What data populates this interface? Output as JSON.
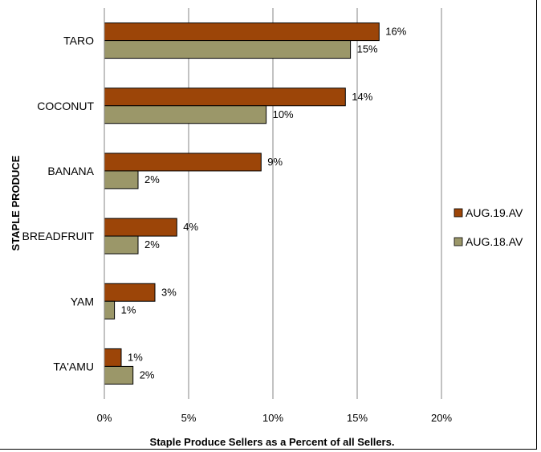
{
  "chart_data": {
    "type": "bar",
    "orientation": "horizontal",
    "title": "",
    "xlabel": "Staple Produce Sellers as a Percent of all Sellers.",
    "ylabel": "STAPLE PRODUCE",
    "categories": [
      "TARO",
      "COCONUT",
      "BANANA",
      "BREADFRUIT",
      "YAM",
      "TA'AMU"
    ],
    "series": [
      {
        "name": "AUG.19.AV",
        "color": "#9c4508",
        "values": [
          16.3,
          14.3,
          9.3,
          4.3,
          3.0,
          1.0
        ],
        "labels": [
          "16%",
          "14%",
          "9%",
          "4%",
          "3%",
          "1%"
        ]
      },
      {
        "name": "AUG.18.AV",
        "color": "#9b9769",
        "values": [
          14.6,
          9.6,
          2.0,
          2.0,
          0.6,
          1.7
        ],
        "labels": [
          "15%",
          "10%",
          "2%",
          "2%",
          "1%",
          "2%"
        ]
      }
    ],
    "xlim": [
      0,
      20
    ],
    "xticks": [
      0,
      5,
      10,
      15,
      20
    ],
    "xtick_labels": [
      "0%",
      "5%",
      "10%",
      "15%",
      "20%"
    ],
    "grid": "vertical",
    "legend_position": "right"
  }
}
